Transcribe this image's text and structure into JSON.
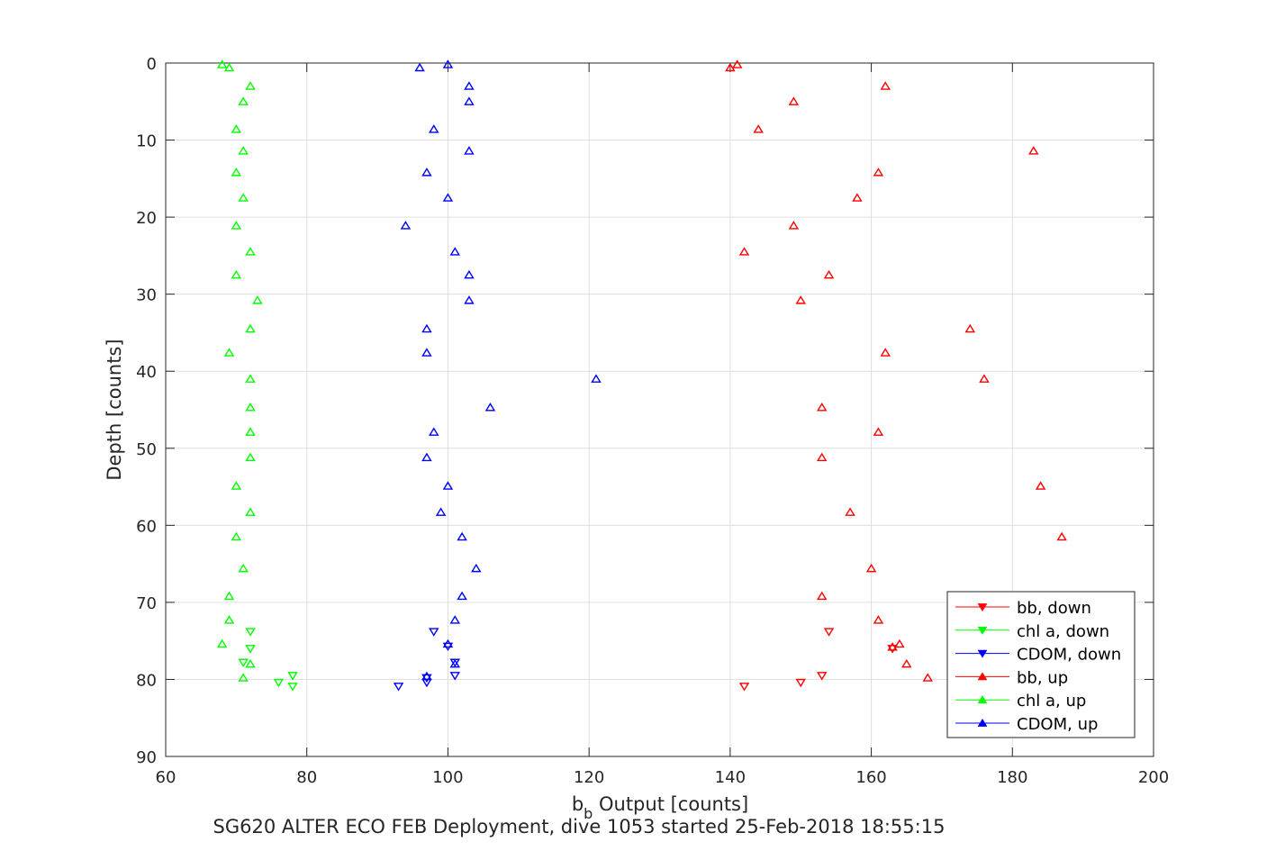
{
  "chart_data": {
    "type": "scatter",
    "xlabel_main": "b",
    "xlabel_sub": "b",
    "xlabel_rest": " Output [counts]",
    "ylabel": "Depth [counts]",
    "caption": "SG620 ALTER ECO FEB Deployment, dive 1053 started 25-Feb-2018 18:55:15",
    "xlim": [
      60,
      200
    ],
    "ylim": [
      0,
      90
    ],
    "y_reversed": true,
    "grid": true,
    "legend_position": "bottom-right",
    "xticks": [
      60,
      80,
      100,
      120,
      140,
      160,
      180,
      200
    ],
    "yticks": [
      0,
      10,
      20,
      30,
      40,
      50,
      60,
      70,
      80,
      90
    ],
    "series": [
      {
        "name": "bb, down",
        "color": "#ff0000",
        "marker": "triangle-down",
        "points": [
          [
            154,
            73.8
          ],
          [
            163,
            76.0
          ],
          [
            153,
            79.5
          ],
          [
            150,
            80.4
          ],
          [
            142,
            80.9
          ]
        ]
      },
      {
        "name": "chl a, down",
        "color": "#00ff00",
        "marker": "triangle-down",
        "points": [
          [
            72,
            73.8
          ],
          [
            72,
            76.0
          ],
          [
            71,
            77.8
          ],
          [
            78,
            79.5
          ],
          [
            76,
            80.4
          ],
          [
            78,
            80.9
          ]
        ]
      },
      {
        "name": "CDOM, down",
        "color": "#0000ff",
        "marker": "triangle-down",
        "points": [
          [
            98,
            73.8
          ],
          [
            100,
            75.7
          ],
          [
            101,
            77.8
          ],
          [
            101,
            79.5
          ],
          [
            97,
            79.8
          ],
          [
            97,
            80.4
          ],
          [
            93,
            80.9
          ]
        ]
      },
      {
        "name": "bb, up",
        "color": "#ff0000",
        "marker": "triangle-up",
        "points": [
          [
            141,
            0.2
          ],
          [
            140,
            0.6
          ],
          [
            162,
            3.0
          ],
          [
            149,
            5.0
          ],
          [
            144,
            8.6
          ],
          [
            183,
            11.4
          ],
          [
            161,
            14.2
          ],
          [
            158,
            17.5
          ],
          [
            149,
            21.1
          ],
          [
            142,
            24.5
          ],
          [
            154,
            27.5
          ],
          [
            150,
            30.8
          ],
          [
            174,
            34.5
          ],
          [
            162,
            37.6
          ],
          [
            176,
            41.0
          ],
          [
            153,
            44.7
          ],
          [
            161,
            47.9
          ],
          [
            153,
            51.2
          ],
          [
            184,
            54.9
          ],
          [
            157,
            58.3
          ],
          [
            187,
            61.5
          ],
          [
            160,
            65.6
          ],
          [
            153,
            69.2
          ],
          [
            161,
            72.3
          ],
          [
            164,
            75.4
          ],
          [
            163,
            75.8
          ],
          [
            165,
            78.0
          ],
          [
            168,
            79.8
          ]
        ]
      },
      {
        "name": "chl a, up",
        "color": "#00ff00",
        "marker": "triangle-up",
        "points": [
          [
            68,
            0.2
          ],
          [
            69,
            0.6
          ],
          [
            72,
            3.0
          ],
          [
            71,
            5.0
          ],
          [
            70,
            8.6
          ],
          [
            71,
            11.4
          ],
          [
            70,
            14.2
          ],
          [
            71,
            17.5
          ],
          [
            70,
            21.1
          ],
          [
            72,
            24.5
          ],
          [
            70,
            27.5
          ],
          [
            73,
            30.8
          ],
          [
            72,
            34.5
          ],
          [
            69,
            37.6
          ],
          [
            72,
            41.0
          ],
          [
            72,
            44.7
          ],
          [
            72,
            47.9
          ],
          [
            72,
            51.2
          ],
          [
            70,
            54.9
          ],
          [
            72,
            58.3
          ],
          [
            70,
            61.5
          ],
          [
            71,
            65.6
          ],
          [
            69,
            69.2
          ],
          [
            69,
            72.3
          ],
          [
            68,
            75.4
          ],
          [
            72,
            78.0
          ],
          [
            71,
            79.8
          ]
        ]
      },
      {
        "name": "CDOM, up",
        "color": "#0000ff",
        "marker": "triangle-up",
        "points": [
          [
            100,
            0.2
          ],
          [
            96,
            0.6
          ],
          [
            103,
            3.0
          ],
          [
            103,
            5.0
          ],
          [
            98,
            8.6
          ],
          [
            103,
            11.4
          ],
          [
            97,
            14.2
          ],
          [
            100,
            17.5
          ],
          [
            94,
            21.1
          ],
          [
            101,
            24.5
          ],
          [
            103,
            27.5
          ],
          [
            103,
            30.8
          ],
          [
            97,
            34.5
          ],
          [
            97,
            37.6
          ],
          [
            121,
            41.0
          ],
          [
            106,
            44.7
          ],
          [
            98,
            47.9
          ],
          [
            97,
            51.2
          ],
          [
            100,
            54.9
          ],
          [
            99,
            58.3
          ],
          [
            102,
            61.5
          ],
          [
            104,
            65.6
          ],
          [
            102,
            69.2
          ],
          [
            101,
            72.3
          ],
          [
            100,
            75.4
          ],
          [
            101,
            78.0
          ],
          [
            97,
            79.6
          ]
        ]
      }
    ]
  }
}
